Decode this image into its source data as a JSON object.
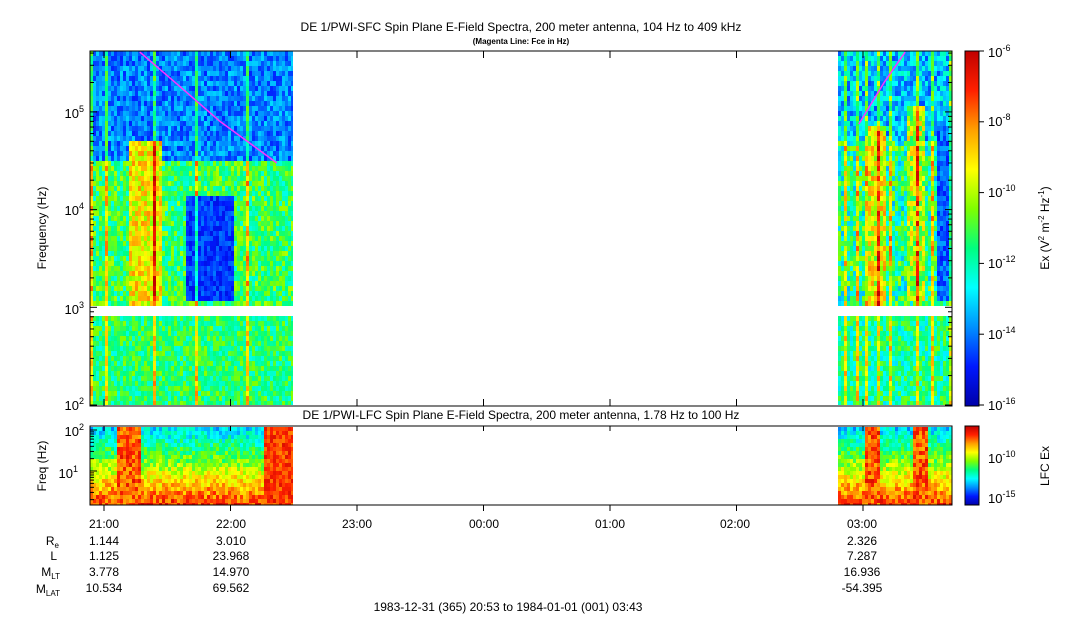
{
  "top_panel": {
    "title": "DE 1/PWI-SFC  Spin Plane E-Field Spectra, 200 meter antenna, 104 Hz to 409 kHz",
    "subtitle": "(Magenta Line: Fce in Hz)",
    "ylabel": "Frequency (Hz)",
    "colorbar_label": "Ex (V² m⁻² Hz⁻¹)"
  },
  "bottom_panel": {
    "title": "DE 1/PWI-LFC  Spin Plane E-Field Spectra, 200 meter antenna, 1.78 Hz to 100 Hz",
    "ylabel": "Freq (Hz)",
    "colorbar_label": "LFC Ex"
  },
  "x_axis": {
    "ticks": [
      "21:00",
      "22:00",
      "23:00",
      "00:00",
      "01:00",
      "02:00",
      "03:00"
    ]
  },
  "ephemeris": {
    "labels": [
      "Rₑ",
      "L",
      "Mₗₜ",
      "Mₗₐₜ"
    ],
    "rows": [
      [
        "1.144",
        "3.010",
        "2.326"
      ],
      [
        "1.125",
        "23.968",
        "7.287"
      ],
      [
        "3.778",
        "14.970",
        "16.936"
      ],
      [
        "10.534",
        "69.562",
        "-54.395"
      ]
    ]
  },
  "time_range": "1983-12-31 (365) 20:53 to 1984-01-01 (001) 03:43",
  "colors": {
    "fce_line": "#ff33ff",
    "scale": [
      "#0000a8",
      "#0018ff",
      "#0090ff",
      "#00ffff",
      "#00ff80",
      "#7fff00",
      "#ffff00",
      "#ffa000",
      "#ff2000",
      "#c00000"
    ]
  },
  "chart_data": [
    {
      "type": "heatmap",
      "title": "DE 1/PWI-SFC  Spin Plane E-Field Spectra, 200 meter antenna, 104 Hz to 409 kHz",
      "subtitle": "(Magenta Line: Fce in Hz)",
      "ylabel": "Frequency (Hz)",
      "y_scale": "log",
      "ylim": [
        100,
        409000
      ],
      "y_ticks": [
        "10^2",
        "10^3",
        "10^4",
        "10^5"
      ],
      "x_ticks": [
        "21:00",
        "22:00",
        "23:00",
        "00:00",
        "01:00",
        "02:00",
        "03:00"
      ],
      "data_intervals": [
        [
          "20:53",
          "22:23"
        ],
        [
          "02:58",
          "03:43"
        ]
      ],
      "colorbar": {
        "label": "Ex (V^2 m^-2 Hz^-1)",
        "scale": "log",
        "range": [
          1e-16,
          1e-06
        ],
        "ticks": [
          "10^-16",
          "10^-14",
          "10^-12",
          "10^-10",
          "10^-8",
          "10^-6"
        ]
      },
      "fce_line": {
        "label": "Fce in Hz",
        "points": [
          {
            "x": "21:17",
            "y": 409000
          },
          {
            "x": "21:35",
            "y": 190000
          },
          {
            "x": "21:55",
            "y": 80000
          },
          {
            "x": "22:22",
            "y": 30000
          },
          {
            "x": "02:58",
            "y": 75000
          },
          {
            "x": "03:10",
            "y": 200000
          },
          {
            "x": "03:20",
            "y": 409000
          }
        ]
      }
    },
    {
      "type": "heatmap",
      "title": "DE 1/PWI-LFC  Spin Plane E-Field Spectra, 200 meter antenna, 1.78 Hz to 100 Hz",
      "ylabel": "Freq (Hz)",
      "y_scale": "log",
      "ylim": [
        1.78,
        100
      ],
      "y_ticks": [
        "10^1",
        "10^2"
      ],
      "data_intervals": [
        [
          "20:53",
          "22:23"
        ],
        [
          "02:58",
          "03:43"
        ]
      ],
      "colorbar": {
        "label": "LFC Ex",
        "scale": "log",
        "ticks": [
          "10^-15",
          "10^-10"
        ]
      }
    }
  ]
}
